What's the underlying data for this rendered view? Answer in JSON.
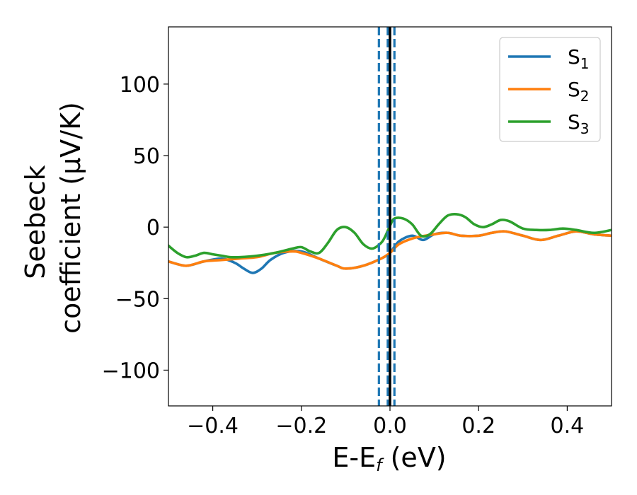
{
  "chart_data": {
    "type": "line",
    "xlabel": {
      "main": "E-E",
      "sub": "f",
      "unit": " (eV)"
    },
    "ylabel": {
      "line1": "Seebeck",
      "line2": "coefficient  (μV/K)"
    },
    "xlim": [
      -0.5,
      0.5
    ],
    "ylim": [
      -125,
      140
    ],
    "xticks": [
      {
        "value": -0.4,
        "label": "−0.4"
      },
      {
        "value": -0.2,
        "label": "−0.2"
      },
      {
        "value": 0.0,
        "label": "0.0"
      },
      {
        "value": 0.2,
        "label": "0.2"
      },
      {
        "value": 0.4,
        "label": "0.4"
      }
    ],
    "yticks": [
      {
        "value": 100,
        "label": "100"
      },
      {
        "value": 50,
        "label": "50"
      },
      {
        "value": 0,
        "label": "0"
      },
      {
        "value": -50,
        "label": "−50"
      },
      {
        "value": -100,
        "label": "−100"
      }
    ],
    "legend_position": "top-right",
    "vlines": [
      {
        "x": -0.025,
        "style": "dashed",
        "color": "#1f77b4"
      },
      {
        "x": -0.005,
        "style": "dashed",
        "color": "#1f77b4"
      },
      {
        "x": 0.01,
        "style": "dashed",
        "color": "#1f77b4"
      },
      {
        "x": 0.0,
        "style": "solid",
        "color": "#000000"
      }
    ],
    "series": [
      {
        "name": "S",
        "sub": "1",
        "color": "#1f77b4",
        "x": [
          -0.5,
          -0.46,
          -0.42,
          -0.38,
          -0.35,
          -0.33,
          -0.31,
          -0.29,
          -0.27,
          -0.24,
          -0.2,
          -0.16,
          -0.12,
          -0.1,
          -0.06,
          -0.02,
          0.0,
          0.02,
          0.05,
          0.075,
          0.1,
          0.13,
          0.16,
          0.2,
          0.23,
          0.26,
          0.3,
          0.34,
          0.38,
          0.42,
          0.46,
          0.5
        ],
        "y": [
          -24,
          -27,
          -24,
          -22,
          -25,
          -29,
          -32,
          -29,
          -23,
          -18,
          -17,
          -22,
          -27,
          -29,
          -27,
          -22,
          -18,
          -10,
          -6,
          -9,
          -5,
          -4,
          -6,
          -6,
          -4,
          -3,
          -6,
          -9,
          -6,
          -3,
          -5,
          -6
        ]
      },
      {
        "name": "S",
        "sub": "2",
        "color": "#ff7f0e",
        "x": [
          -0.5,
          -0.46,
          -0.42,
          -0.38,
          -0.34,
          -0.3,
          -0.26,
          -0.22,
          -0.2,
          -0.16,
          -0.12,
          -0.1,
          -0.06,
          -0.02,
          0.0,
          0.02,
          0.05,
          0.08,
          0.1,
          0.13,
          0.16,
          0.2,
          0.23,
          0.26,
          0.3,
          0.34,
          0.38,
          0.42,
          0.46,
          0.5
        ],
        "y": [
          -24,
          -27,
          -24,
          -23,
          -22,
          -21,
          -18,
          -17,
          -18,
          -22,
          -27,
          -29,
          -27,
          -22,
          -18,
          -12,
          -8,
          -6,
          -5,
          -4,
          -6,
          -6,
          -4,
          -3,
          -6,
          -9,
          -6,
          -3,
          -5,
          -6
        ]
      },
      {
        "name": "S",
        "sub": "3",
        "color": "#2ca02c",
        "x": [
          -0.5,
          -0.48,
          -0.46,
          -0.44,
          -0.42,
          -0.4,
          -0.38,
          -0.36,
          -0.34,
          -0.3,
          -0.26,
          -0.22,
          -0.2,
          -0.18,
          -0.16,
          -0.14,
          -0.12,
          -0.1,
          -0.08,
          -0.06,
          -0.04,
          -0.02,
          -0.01,
          0.0,
          0.01,
          0.03,
          0.05,
          0.07,
          0.09,
          0.11,
          0.13,
          0.15,
          0.17,
          0.19,
          0.21,
          0.23,
          0.25,
          0.27,
          0.3,
          0.33,
          0.36,
          0.39,
          0.42,
          0.46,
          0.5
        ],
        "y": [
          -13,
          -18,
          -21,
          -20,
          -18,
          -19,
          -20,
          -21,
          -21,
          -20,
          -18,
          -15,
          -14,
          -17,
          -18,
          -11,
          -2,
          0,
          -4,
          -12,
          -15,
          -11,
          -6,
          1,
          6,
          6,
          2,
          -6,
          -5,
          2,
          8,
          9,
          7,
          2,
          0,
          2,
          5,
          4,
          -1,
          -2,
          -2,
          -1,
          -2,
          -4,
          -2
        ]
      }
    ]
  }
}
